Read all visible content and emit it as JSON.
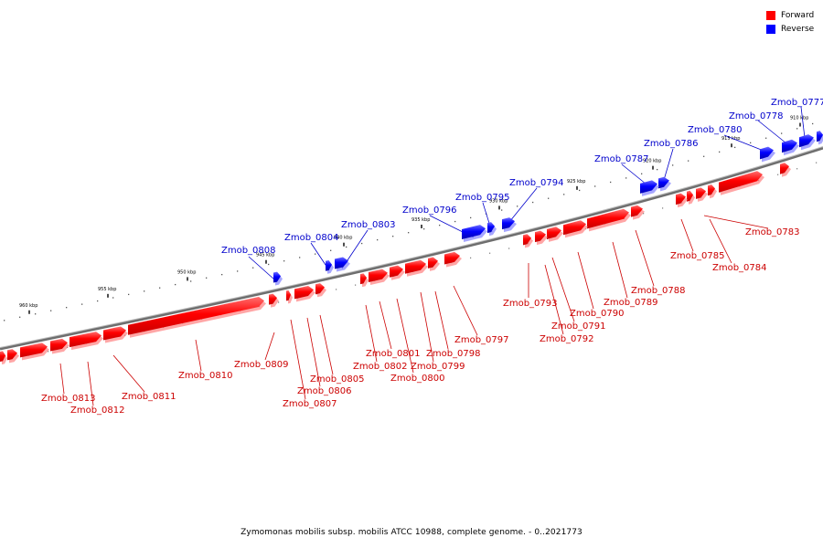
{
  "legend": {
    "forward_label": "Forward",
    "reverse_label": "Reverse",
    "forward_color": "#ff0000",
    "reverse_color": "#0000ff"
  },
  "caption": "Zymomonas mobilis subsp. mobilis ATCC 10988, complete genome. - 0..2021773",
  "ticks": [
    "910 kbp",
    "915 kbp",
    "920 kbp",
    "925 kbp",
    "930 kbp",
    "935 kbp",
    "940 kbp",
    "945 kbp",
    "950 kbp",
    "955 kbp",
    "960 kbp"
  ],
  "reverse_genes": [
    "Zmob_0777",
    "Zmob_0778",
    "Zmob_0780",
    "Zmob_0786",
    "Zmob_0787",
    "Zmob_0794",
    "Zmob_0795",
    "Zmob_0796",
    "Zmob_0803",
    "Zmob_0804",
    "Zmob_0808"
  ],
  "forward_genes": [
    "Zmob_0783",
    "Zmob_0784",
    "Zmob_0785",
    "Zmob_0788",
    "Zmob_0789",
    "Zmob_0790",
    "Zmob_0791",
    "Zmob_0792",
    "Zmob_0793",
    "Zmob_0797",
    "Zmob_0798",
    "Zmob_0799",
    "Zmob_0800",
    "Zmob_0801",
    "Zmob_0802",
    "Zmob_0805",
    "Zmob_0806",
    "Zmob_0807",
    "Zmob_0809",
    "Zmob_0810",
    "Zmob_0811",
    "Zmob_0812",
    "Zmob_0813"
  ]
}
